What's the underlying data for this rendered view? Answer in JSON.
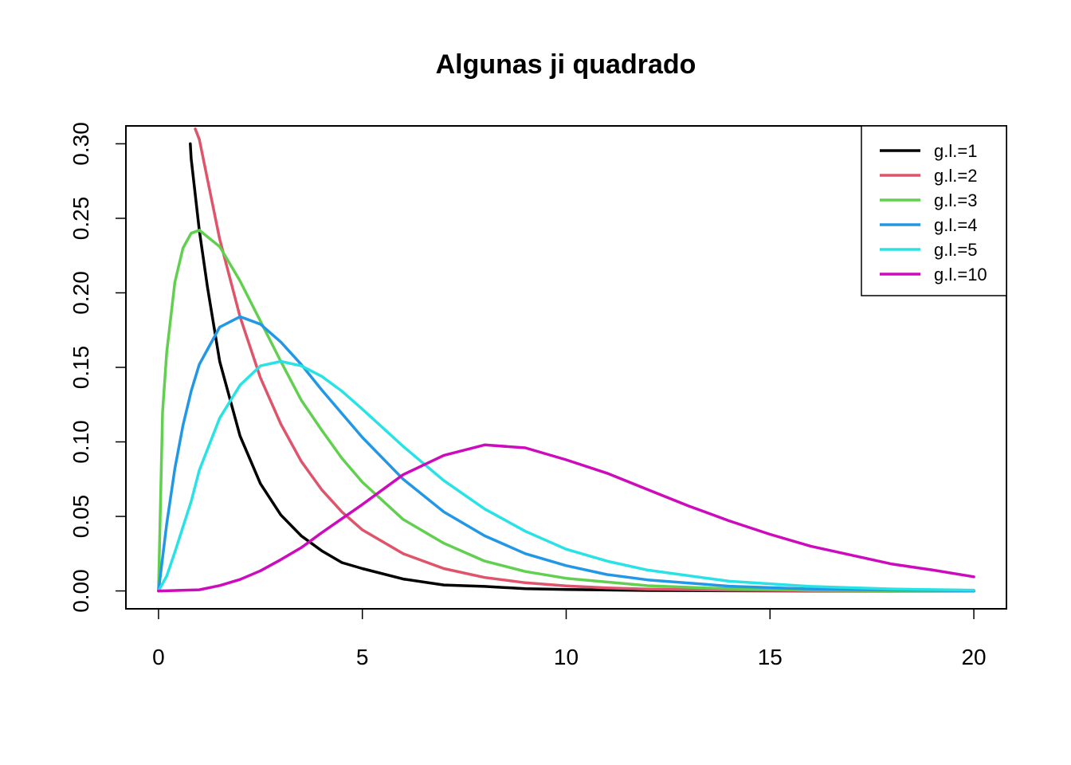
{
  "chart_data": {
    "type": "line",
    "title": "Algunas ji quadrado",
    "xlabel": "",
    "ylabel": "",
    "xlim": [
      -0.8,
      20.8
    ],
    "ylim": [
      -0.012,
      0.312
    ],
    "x_ticks": [
      0,
      5,
      10,
      15,
      20
    ],
    "x_tick_labels": [
      "0",
      "5",
      "10",
      "15",
      "20"
    ],
    "y_ticks": [
      0.0,
      0.05,
      0.1,
      0.15,
      0.2,
      0.25,
      0.3
    ],
    "y_tick_labels": [
      "0.00",
      "0.05",
      "0.10",
      "0.15",
      "0.20",
      "0.25",
      "0.30"
    ],
    "grid": false,
    "legend_position": "top-right",
    "x": [
      0.2,
      0.4,
      0.6,
      0.8,
      1.0,
      1.5,
      2.0,
      2.5,
      3.0,
      3.5,
      4.0,
      4.5,
      5.0,
      6.0,
      7.0,
      8.0,
      9.0,
      10.0,
      11.0,
      12.0,
      13.0,
      14.0,
      15.0,
      16.0,
      17.0,
      18.0,
      19.0,
      20.0
    ],
    "series": [
      {
        "name": "g.l.=1",
        "color": "#000000",
        "x": [
          0.78,
          0.8,
          1.0,
          1.2,
          1.5,
          2.0,
          2.5,
          3.0,
          3.5,
          4.0,
          4.5,
          5.0,
          6.0,
          7.0,
          8.0,
          9.0,
          10.0,
          12.0,
          14.0,
          16.0,
          18.0,
          20.0
        ],
        "values": [
          0.3,
          0.29,
          0.242,
          0.204,
          0.154,
          0.104,
          0.072,
          0.051,
          0.037,
          0.027,
          0.019,
          0.015,
          0.008,
          0.004,
          0.003,
          0.0015,
          0.001,
          0.0003,
          0.0001,
          0.0,
          0.0,
          0.0
        ]
      },
      {
        "name": "g.l.=2",
        "color": "#DF536B",
        "x": [
          0.9,
          1.0,
          1.5,
          2.0,
          2.5,
          3.0,
          3.5,
          4.0,
          4.5,
          5.0,
          6.0,
          7.0,
          8.0,
          9.0,
          10.0,
          11.0,
          12.0,
          14.0,
          16.0,
          18.0,
          20.0
        ],
        "values": [
          0.31,
          0.303,
          0.236,
          0.184,
          0.143,
          0.112,
          0.087,
          0.068,
          0.053,
          0.041,
          0.025,
          0.015,
          0.009,
          0.0055,
          0.0034,
          0.002,
          0.0012,
          0.0005,
          0.0002,
          0.0001,
          0.0
        ]
      },
      {
        "name": "g.l.=3",
        "color": "#61D04F",
        "x": [
          0.0,
          0.1,
          0.2,
          0.4,
          0.6,
          0.8,
          1.0,
          1.5,
          2.0,
          2.5,
          3.0,
          3.5,
          4.0,
          4.5,
          5.0,
          6.0,
          7.0,
          8.0,
          9.0,
          10.0,
          12.0,
          14.0,
          16.0,
          18.0,
          20.0
        ],
        "values": [
          0.0,
          0.12,
          0.16,
          0.207,
          0.23,
          0.24,
          0.242,
          0.231,
          0.208,
          0.181,
          0.154,
          0.128,
          0.108,
          0.089,
          0.073,
          0.048,
          0.032,
          0.02,
          0.013,
          0.0085,
          0.0035,
          0.0014,
          0.0005,
          0.0002,
          0.0001
        ]
      },
      {
        "name": "g.l.=4",
        "color": "#2297E6",
        "x": [
          0.0,
          0.2,
          0.4,
          0.6,
          0.8,
          1.0,
          1.5,
          2.0,
          2.5,
          3.0,
          3.5,
          4.0,
          4.5,
          5.0,
          6.0,
          7.0,
          8.0,
          9.0,
          10.0,
          11.0,
          12.0,
          14.0,
          16.0,
          18.0,
          20.0
        ],
        "values": [
          0.0,
          0.045,
          0.082,
          0.111,
          0.134,
          0.152,
          0.177,
          0.184,
          0.179,
          0.167,
          0.152,
          0.135,
          0.119,
          0.103,
          0.075,
          0.053,
          0.037,
          0.025,
          0.017,
          0.011,
          0.0074,
          0.0032,
          0.0013,
          0.0006,
          0.0002
        ]
      },
      {
        "name": "g.l.=5",
        "color": "#28E2E5",
        "x": [
          0.0,
          0.2,
          0.4,
          0.6,
          0.8,
          1.0,
          1.5,
          2.0,
          2.5,
          3.0,
          3.5,
          4.0,
          4.5,
          5.0,
          6.0,
          7.0,
          8.0,
          9.0,
          10.0,
          11.0,
          12.0,
          14.0,
          16.0,
          18.0,
          20.0
        ],
        "values": [
          0.0,
          0.01,
          0.026,
          0.043,
          0.06,
          0.081,
          0.116,
          0.138,
          0.151,
          0.154,
          0.151,
          0.144,
          0.134,
          0.122,
          0.097,
          0.074,
          0.055,
          0.04,
          0.028,
          0.02,
          0.014,
          0.0065,
          0.003,
          0.0013,
          0.0005
        ]
      },
      {
        "name": "g.l.=10",
        "color": "#CD0BBC",
        "x": [
          0.0,
          1.0,
          1.5,
          2.0,
          2.5,
          3.0,
          3.5,
          4.0,
          5.0,
          6.0,
          7.0,
          8.0,
          9.0,
          10.0,
          11.0,
          12.0,
          13.0,
          14.0,
          15.0,
          16.0,
          17.0,
          18.0,
          19.0,
          20.0
        ],
        "values": [
          0.0,
          0.0008,
          0.0036,
          0.0077,
          0.0135,
          0.021,
          0.029,
          0.039,
          0.058,
          0.078,
          0.091,
          0.098,
          0.096,
          0.088,
          0.079,
          0.068,
          0.057,
          0.047,
          0.038,
          0.03,
          0.024,
          0.018,
          0.014,
          0.0095
        ]
      }
    ]
  }
}
